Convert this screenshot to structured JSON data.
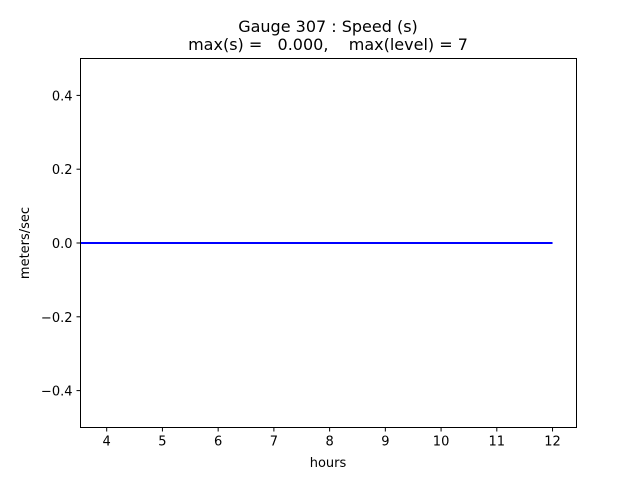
{
  "chart_data": {
    "type": "line",
    "title": "Gauge 307 : Speed (s)",
    "subtitle": "max(s) =   0.000,    max(level) = 7",
    "xlabel": "hours",
    "ylabel": "meters/sec",
    "xlim": [
      3.53,
      12.43
    ],
    "ylim": [
      -0.5,
      0.5
    ],
    "xticks": [
      4,
      5,
      6,
      7,
      8,
      9,
      10,
      11,
      12
    ],
    "yticks": [
      -0.4,
      -0.2,
      0.0,
      0.2,
      0.4
    ],
    "ytick_labels": [
      "−0.4",
      "−0.2",
      "0.0",
      "0.2",
      "0.4"
    ],
    "grid": false,
    "series": [
      {
        "color": "#0000ff",
        "x": [
          3.53,
          12.0
        ],
        "y": [
          0.0,
          0.0
        ]
      }
    ]
  }
}
